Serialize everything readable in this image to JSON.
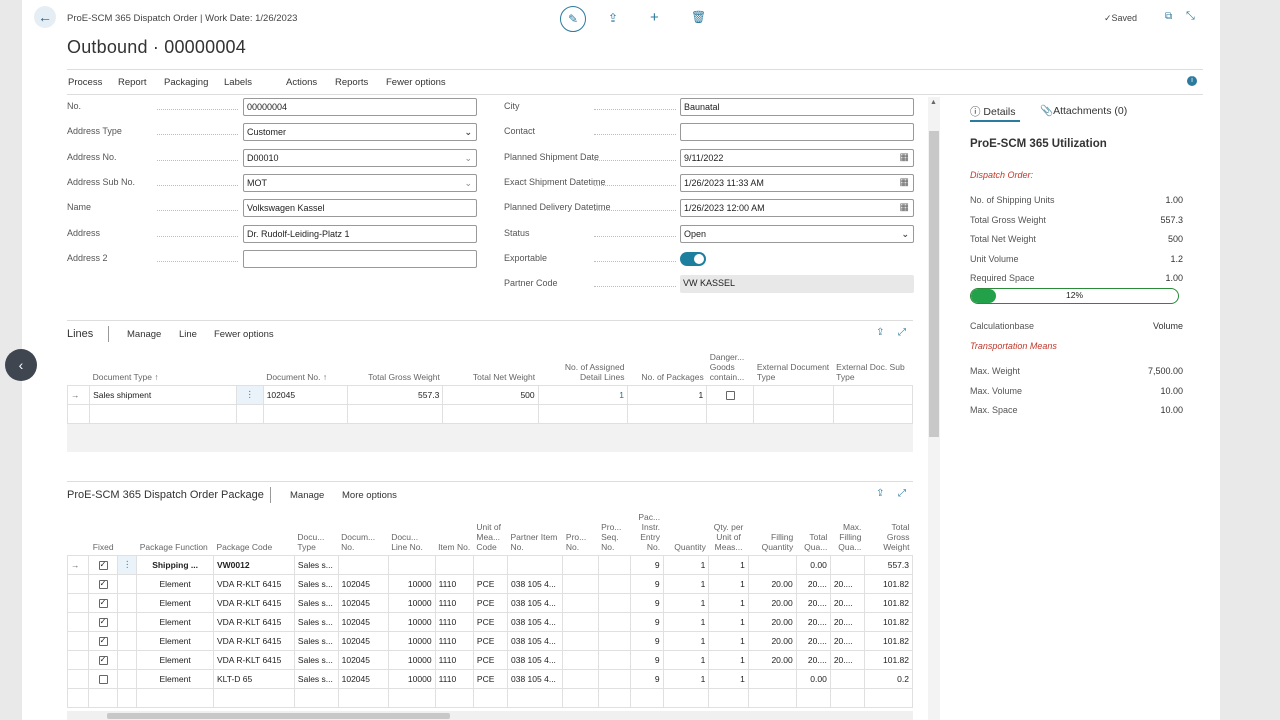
{
  "header": {
    "breadcrumb": "ProE-SCM 365 Dispatch Order | Work Date: 1/26/2023",
    "title": "Outbound · 00000004",
    "saved": "Saved"
  },
  "menu": [
    "Process",
    "Report",
    "Packaging",
    "Labels",
    "Actions",
    "Reports",
    "Fewer options"
  ],
  "general": {
    "left": [
      {
        "label": "No.",
        "value": "00000004",
        "kind": "text"
      },
      {
        "label": "Address Type",
        "value": "Customer",
        "kind": "select"
      },
      {
        "label": "Address No.",
        "value": "D00010",
        "kind": "lookup"
      },
      {
        "label": "Address Sub No.",
        "value": "MOT",
        "kind": "lookup"
      },
      {
        "label": "Name",
        "value": "Volkswagen Kassel",
        "kind": "text"
      },
      {
        "label": "Address",
        "value": "Dr. Rudolf-Leiding-Platz 1",
        "kind": "text"
      },
      {
        "label": "Address 2",
        "value": "",
        "kind": "text"
      }
    ],
    "right": [
      {
        "label": "City",
        "value": "Baunatal",
        "kind": "text"
      },
      {
        "label": "Contact",
        "value": "",
        "kind": "text"
      },
      {
        "label": "Planned Shipment Date",
        "value": "9/11/2022",
        "kind": "date"
      },
      {
        "label": "Exact Shipment Datetime",
        "value": "1/26/2023 11:33 AM",
        "kind": "date"
      },
      {
        "label": "Planned Delivery Datetime",
        "value": "1/26/2023 12:00 AM",
        "kind": "date"
      },
      {
        "label": "Status",
        "value": "Open",
        "kind": "select"
      },
      {
        "label": "Exportable",
        "value": "",
        "kind": "toggle"
      },
      {
        "label": "Partner Code",
        "value": "VW KASSEL",
        "kind": "readonly"
      }
    ]
  },
  "lines": {
    "title": "Lines",
    "menu": [
      "Manage",
      "Line",
      "Fewer options"
    ],
    "columns": [
      "Document Type ↑",
      "Document No. ↑",
      "Total Gross Weight",
      "Total Net Weight",
      "No. of Assigned Detail Lines",
      "No. of Packages",
      "Danger... Goods contain...",
      "External Document Type",
      "External Doc. Sub Type"
    ],
    "rows": [
      {
        "doc_type": "Sales shipment",
        "doc_no": "102045",
        "gross": "557.3",
        "net": "500",
        "assigned": "1",
        "packages": "1"
      }
    ]
  },
  "package": {
    "title": "ProE-SCM 365 Dispatch Order Package",
    "menu": [
      "Manage",
      "More options"
    ],
    "columns": [
      "Fixed",
      "Package Function",
      "Package Code",
      "Docu... Type",
      "Docum... No.",
      "Docu... Line No.",
      "Item No.",
      "Unit of Mea... Code",
      "Partner Item No.",
      "Pro... No.",
      "Pro... Seq. No.",
      "Pac... Instr. Entry No.",
      "Quantity",
      "Qty. per Unit of Meas...",
      "Filling Quantity",
      "Total Qua...",
      "Max. Filling Qua...",
      "Total Gross Weight"
    ],
    "rows": [
      {
        "fixed": true,
        "func": "Shipping ...",
        "code": "VW0012",
        "dtype": "Sales s...",
        "dno": "",
        "line": "",
        "item": "",
        "uom": "",
        "partner": "",
        "pno": "",
        "pseq": "",
        "instr": "9",
        "qty": "1",
        "qper": "1",
        "fill": "",
        "totq": "0.00",
        "maxf": "",
        "gross": "557.3",
        "bold": true
      },
      {
        "fixed": true,
        "func": "Element",
        "code": "VDA R-KLT 6415",
        "dtype": "Sales s...",
        "dno": "102045",
        "line": "10000",
        "item": "1110",
        "uom": "PCE",
        "partner": "038 105 4...",
        "pno": "",
        "pseq": "",
        "instr": "9",
        "qty": "1",
        "qper": "1",
        "fill": "20.00",
        "totq": "20....",
        "maxf": "20....",
        "gross": "101.82"
      },
      {
        "fixed": true,
        "func": "Element",
        "code": "VDA R-KLT 6415",
        "dtype": "Sales s...",
        "dno": "102045",
        "line": "10000",
        "item": "1110",
        "uom": "PCE",
        "partner": "038 105 4...",
        "pno": "",
        "pseq": "",
        "instr": "9",
        "qty": "1",
        "qper": "1",
        "fill": "20.00",
        "totq": "20....",
        "maxf": "20....",
        "gross": "101.82"
      },
      {
        "fixed": true,
        "func": "Element",
        "code": "VDA R-KLT 6415",
        "dtype": "Sales s...",
        "dno": "102045",
        "line": "10000",
        "item": "1110",
        "uom": "PCE",
        "partner": "038 105 4...",
        "pno": "",
        "pseq": "",
        "instr": "9",
        "qty": "1",
        "qper": "1",
        "fill": "20.00",
        "totq": "20....",
        "maxf": "20....",
        "gross": "101.82"
      },
      {
        "fixed": true,
        "func": "Element",
        "code": "VDA R-KLT 6415",
        "dtype": "Sales s...",
        "dno": "102045",
        "line": "10000",
        "item": "1110",
        "uom": "PCE",
        "partner": "038 105 4...",
        "pno": "",
        "pseq": "",
        "instr": "9",
        "qty": "1",
        "qper": "1",
        "fill": "20.00",
        "totq": "20....",
        "maxf": "20....",
        "gross": "101.82"
      },
      {
        "fixed": true,
        "func": "Element",
        "code": "VDA R-KLT 6415",
        "dtype": "Sales s...",
        "dno": "102045",
        "line": "10000",
        "item": "1110",
        "uom": "PCE",
        "partner": "038 105 4...",
        "pno": "",
        "pseq": "",
        "instr": "9",
        "qty": "1",
        "qper": "1",
        "fill": "20.00",
        "totq": "20....",
        "maxf": "20....",
        "gross": "101.82"
      },
      {
        "fixed": false,
        "func": "Element",
        "code": "KLT-D 65",
        "dtype": "Sales s...",
        "dno": "102045",
        "line": "10000",
        "item": "1110",
        "uom": "PCE",
        "partner": "038 105 4...",
        "pno": "",
        "pseq": "",
        "instr": "9",
        "qty": "1",
        "qper": "1",
        "fill": "",
        "totq": "0.00",
        "maxf": "",
        "gross": "0.2"
      }
    ]
  },
  "factbox": {
    "tab_details": "Details",
    "tab_attachments": "Attachments (0)",
    "title": "ProE-SCM 365 Utilization",
    "dispatch_heading": "Dispatch Order:",
    "dispatch": [
      {
        "label": "No. of Shipping Units",
        "value": "1.00",
        "link": true
      },
      {
        "label": "Total Gross Weight",
        "value": "557.3",
        "link": false
      },
      {
        "label": "Total Net Weight",
        "value": "500",
        "link": false
      },
      {
        "label": "Unit Volume",
        "value": "1.2",
        "link": false
      },
      {
        "label": "Required Space",
        "value": "1.00",
        "link": false
      }
    ],
    "progress_label": "12%",
    "progress_value": 0.12,
    "calc_label": "Calculationbase",
    "calc_value": "Volume",
    "transport_heading": "Transportation Means",
    "transport": [
      {
        "label": "Max. Weight",
        "value": "7,500.00"
      },
      {
        "label": "Max. Volume",
        "value": "10.00"
      },
      {
        "label": "Max. Space",
        "value": "10.00"
      }
    ]
  },
  "colors": {
    "accent": "#2c7a9e",
    "link": "#1d6f9e",
    "red": "#c0392b",
    "green": "#22a04a"
  }
}
